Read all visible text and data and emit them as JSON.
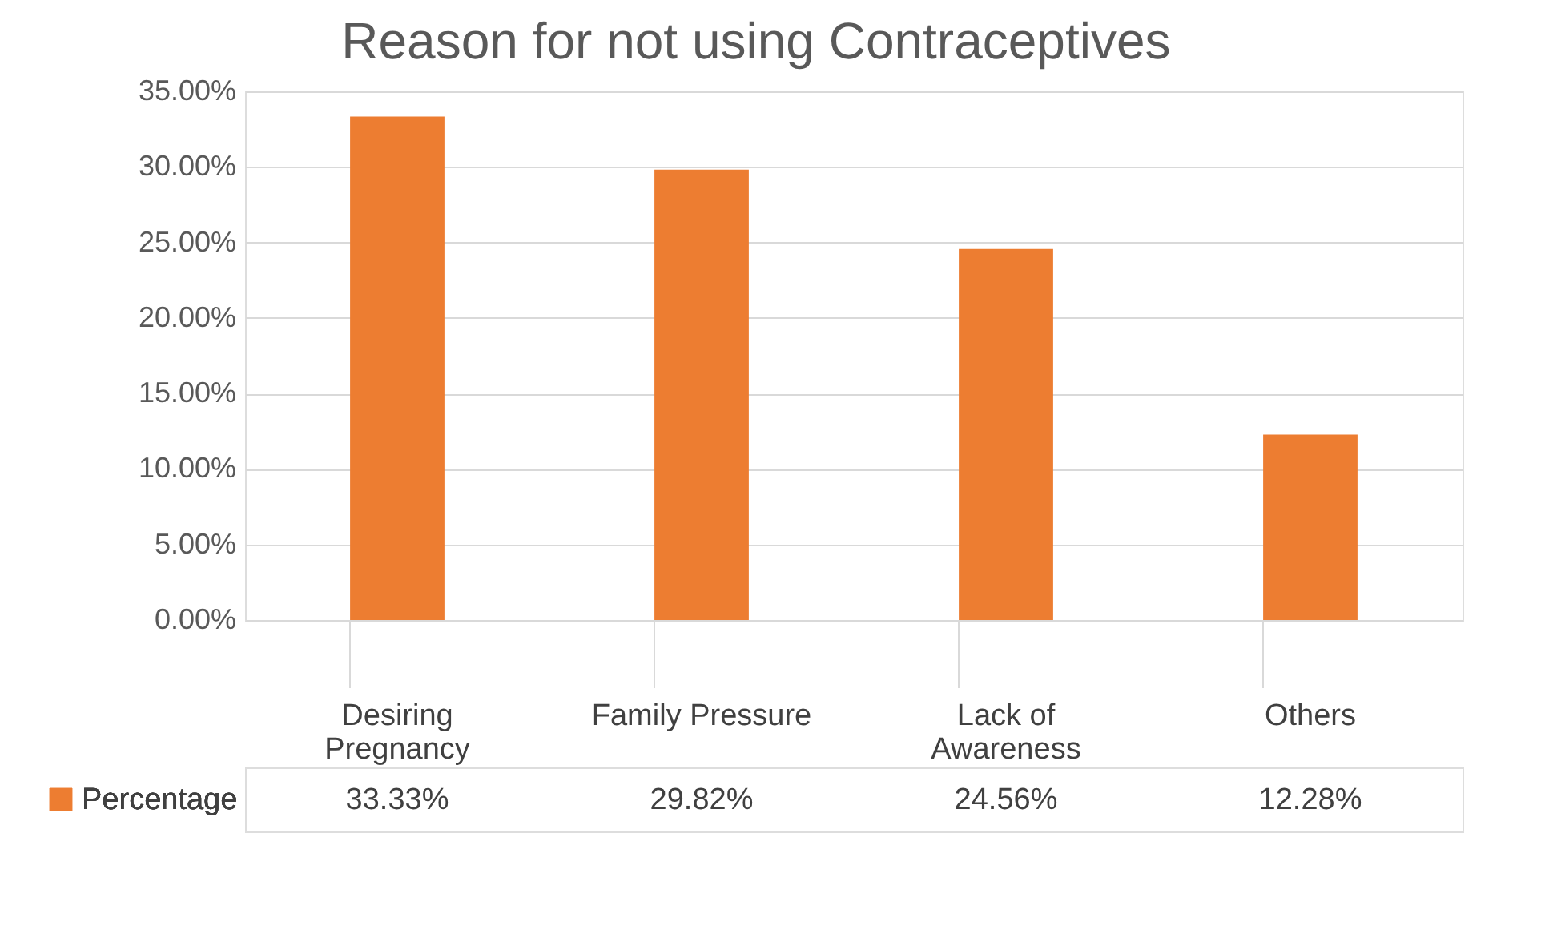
{
  "chart_data": {
    "type": "bar",
    "title": "Reason for not using Contraceptives",
    "categories": [
      "Desiring Pregnancy",
      "Family Pressure",
      "Lack of Awareness",
      "Others"
    ],
    "series": [
      {
        "name": "Percentage",
        "color": "#ed7d31",
        "values": [
          33.33,
          29.82,
          24.56,
          12.28
        ],
        "value_labels": [
          "33.33%",
          "29.82%",
          "24.56%",
          "12.28%"
        ]
      }
    ],
    "ylim": [
      0,
      35
    ],
    "yticks": [
      {
        "value": 0,
        "label": "0.00%"
      },
      {
        "value": 5,
        "label": "5.00%"
      },
      {
        "value": 10,
        "label": "10.00%"
      },
      {
        "value": 15,
        "label": "15.00%"
      },
      {
        "value": 20,
        "label": "20.00%"
      },
      {
        "value": 25,
        "label": "25.00%"
      },
      {
        "value": 30,
        "label": "30.00%"
      },
      {
        "value": 35,
        "label": "35.00%"
      }
    ],
    "grid": "y",
    "legend": "bottom left"
  }
}
